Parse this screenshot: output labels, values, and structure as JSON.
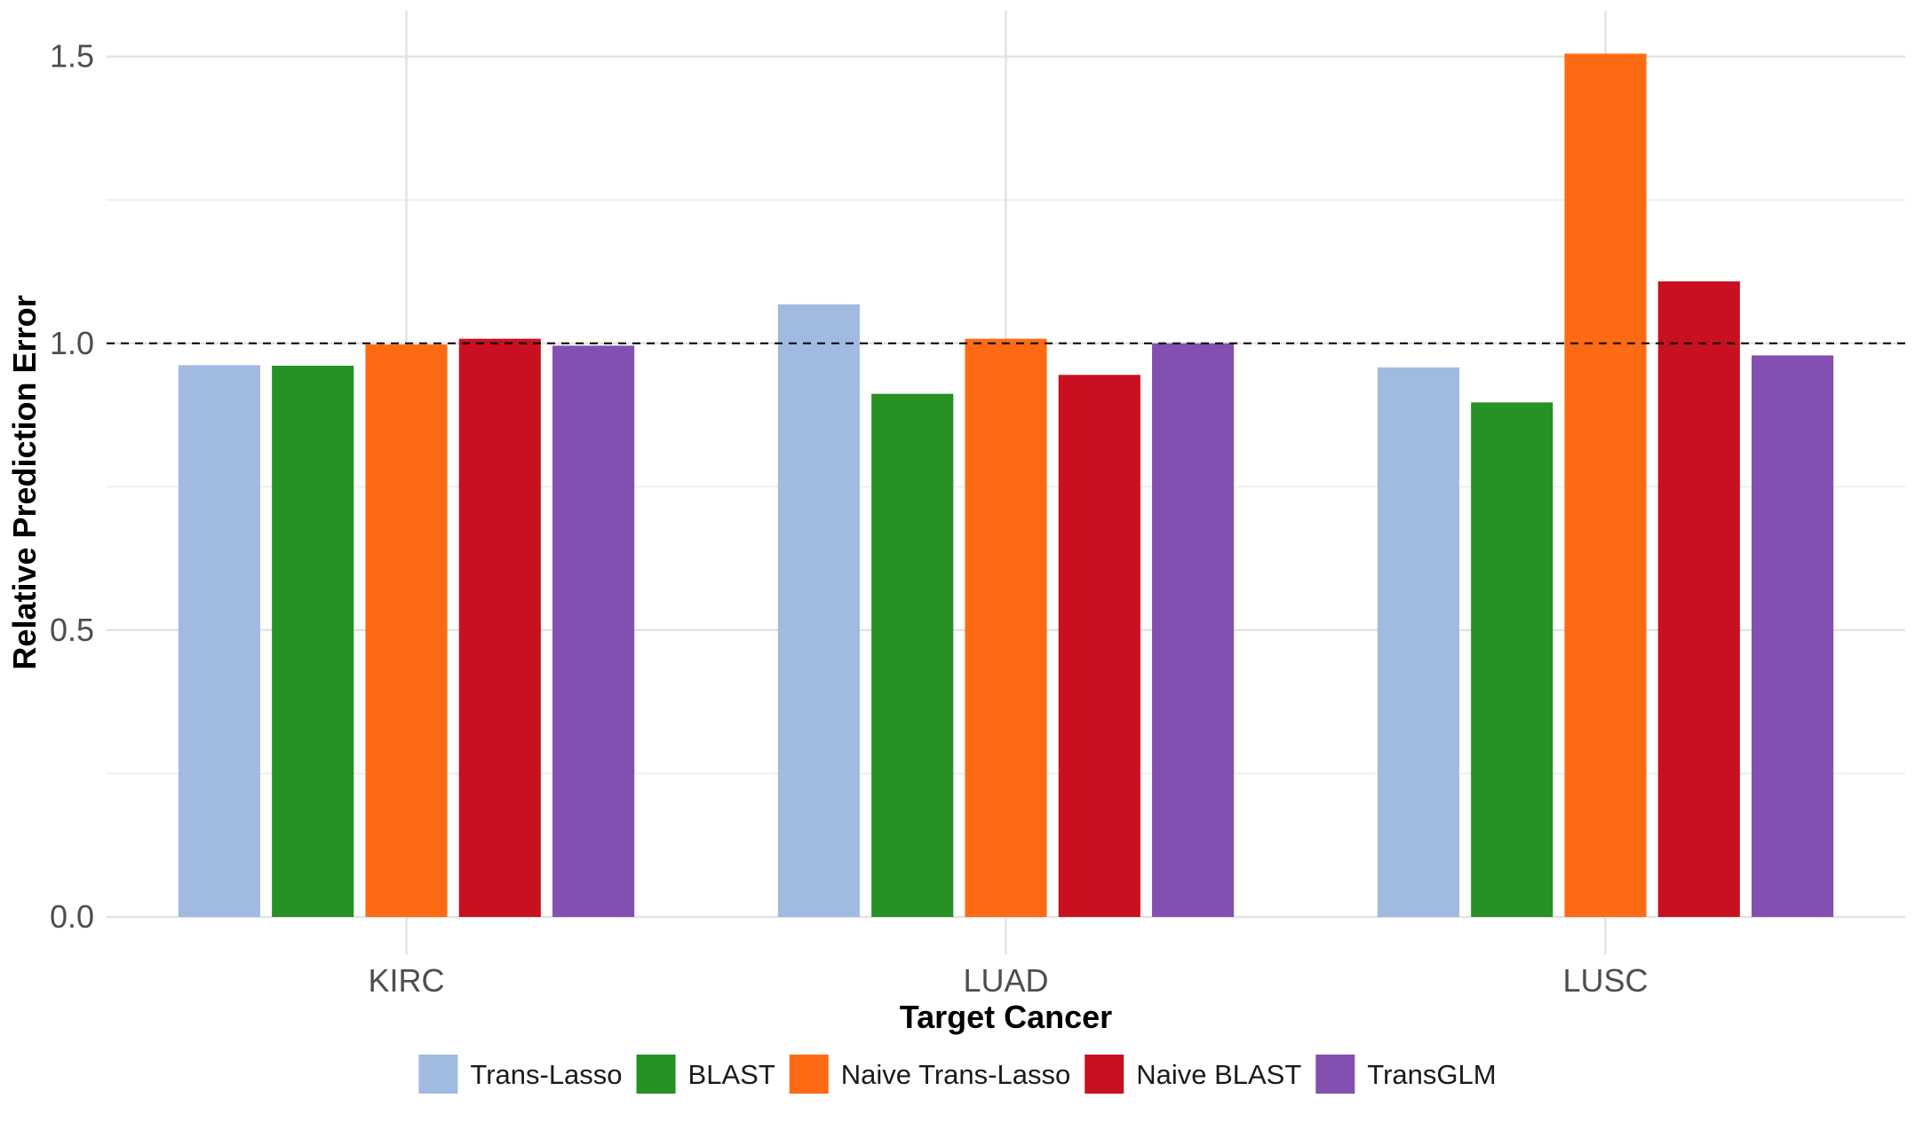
{
  "chart_data": {
    "type": "bar",
    "title": "",
    "xlabel": "Target Cancer",
    "ylabel": "Relative Prediction Error",
    "categories": [
      "KIRC",
      "LUAD",
      "LUSC"
    ],
    "series": [
      {
        "name": "Trans-Lasso",
        "color": "#a1bae2",
        "values": [
          0.962,
          1.068,
          0.958
        ]
      },
      {
        "name": "BLAST",
        "color": "#279124",
        "values": [
          0.961,
          0.912,
          0.897
        ]
      },
      {
        "name": "Naive Trans-Lasso",
        "color": "#fe6a13",
        "values": [
          0.998,
          1.008,
          1.505
        ]
      },
      {
        "name": "Naive BLAST",
        "color": "#c91020",
        "values": [
          1.008,
          0.945,
          1.108
        ]
      },
      {
        "name": "TransGLM",
        "color": "#834fb0",
        "values": [
          0.996,
          1.0,
          0.979
        ]
      }
    ],
    "ylim": [
      -0.065,
      1.58
    ],
    "yticks": [
      0.0,
      0.5,
      1.0,
      1.5
    ],
    "ytick_labels": [
      "0.0",
      "0.5",
      "1.0",
      "1.5"
    ],
    "reference_line": {
      "y": 1.0,
      "style": "dashed",
      "color": "#000000"
    },
    "grid": true,
    "legend_position": "bottom"
  }
}
